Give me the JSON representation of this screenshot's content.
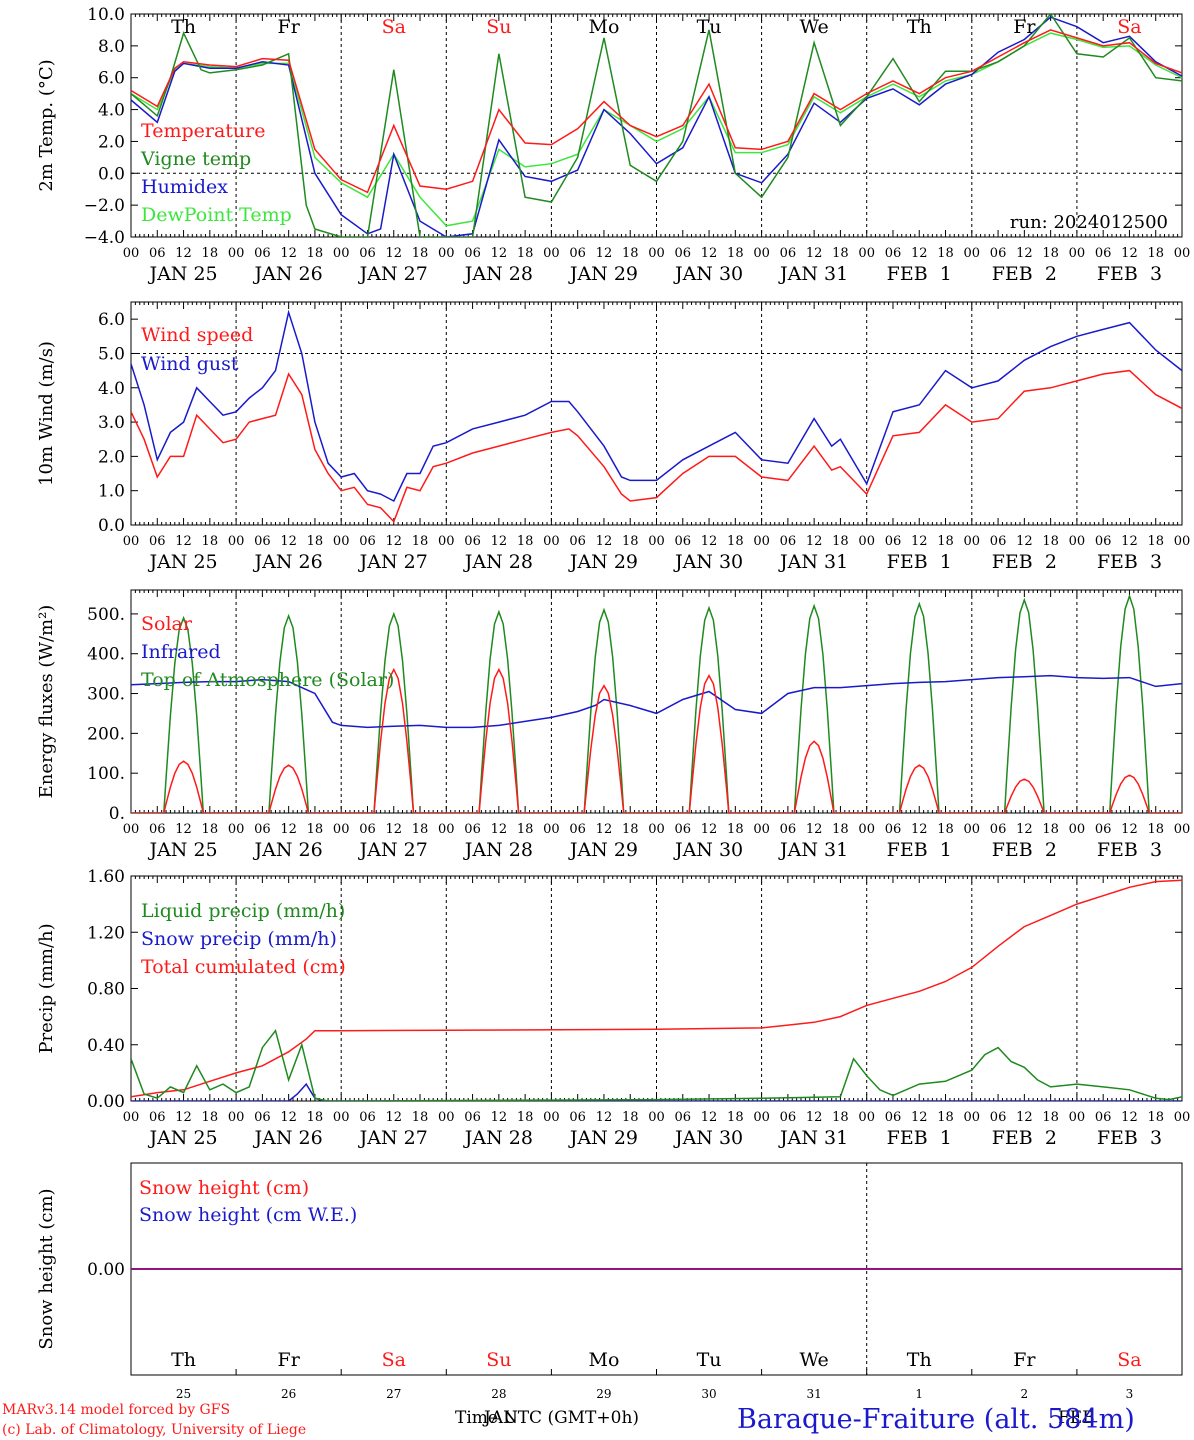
{
  "colors": {
    "red": "#ff1a1a",
    "green": "#1f8a1f",
    "blue": "#1a1acc",
    "light_green": "#3ce63c",
    "purple": "#800080",
    "axis": "#000000"
  },
  "days": {
    "weekday_labels": [
      "Th",
      "Fr",
      "Sa",
      "Su",
      "Mo",
      "Tu",
      "We",
      "Th",
      "Fr",
      "Sa"
    ],
    "weekend_flags": [
      false,
      false,
      true,
      true,
      false,
      false,
      false,
      false,
      false,
      true
    ],
    "date_labels": [
      "JAN 25",
      "JAN 26",
      "JAN 27",
      "JAN 28",
      "JAN 29",
      "JAN 30",
      "JAN 31",
      "FEB  1",
      "FEB  2",
      "FEB  3"
    ],
    "day_numbers": [
      "25",
      "26",
      "27",
      "28",
      "29",
      "30",
      "31",
      "1",
      "2",
      "3"
    ],
    "hour_labels": [
      "00",
      "06",
      "12",
      "18"
    ],
    "end_hour_label": "00"
  },
  "footer": {
    "model_line": "MARv3.14 model forced by GFS",
    "lab_line": "(c) Lab. of Climatology, University of Liege",
    "xlabel": "Time UTC (GMT+0h)",
    "overlay_month": "JAN",
    "overlay_month2": "FEB",
    "station": "Baraque-Fraiture (alt. 584m)"
  },
  "chart_data": [
    {
      "type": "line",
      "ylabel": "2m Temp. (°C)",
      "ylim": [
        -4,
        10
      ],
      "yticks": [
        -4,
        -2,
        0,
        2,
        4,
        6,
        8,
        10
      ],
      "ytick_labels": [
        "−4.0",
        "−2.0",
        "0.0",
        "2.0",
        "4.0",
        "6.0",
        "8.0",
        "10.0"
      ],
      "dashed_y": 0,
      "annotation": "run: 2024012500",
      "x_unit": "hours since 2024-01-25 00 UTC",
      "series": [
        {
          "name": "Temperature",
          "color": "red",
          "x": [
            0,
            6,
            10,
            12,
            18,
            24,
            30,
            36,
            42,
            48,
            54,
            60,
            66,
            72,
            78,
            84,
            90,
            96,
            102,
            108,
            114,
            120,
            126,
            132,
            138,
            144,
            150,
            156,
            162,
            168,
            174,
            180,
            186,
            192,
            198,
            204,
            210,
            216,
            222,
            228,
            234,
            240
          ],
          "y": [
            5.2,
            4.2,
            6.6,
            7.0,
            6.8,
            6.7,
            7.2,
            7.1,
            1.5,
            -0.4,
            -1.2,
            3.0,
            -0.8,
            -1.0,
            -0.5,
            4.0,
            1.9,
            1.8,
            2.8,
            4.5,
            3.0,
            2.3,
            3.0,
            5.6,
            1.6,
            1.5,
            2.0,
            5.0,
            4.0,
            5.0,
            5.8,
            5.0,
            6.0,
            6.4,
            7.3,
            8.2,
            9.0,
            8.5,
            8.0,
            8.2,
            6.9,
            6.3
          ]
        },
        {
          "name": "Vigne temp",
          "color": "green",
          "x": [
            0,
            6,
            9,
            12,
            16,
            18,
            24,
            30,
            36,
            40,
            42,
            48,
            54,
            60,
            66,
            72,
            78,
            84,
            90,
            96,
            102,
            108,
            114,
            120,
            126,
            132,
            138,
            144,
            150,
            156,
            162,
            168,
            174,
            180,
            186,
            192,
            198,
            204,
            210,
            216,
            222,
            228,
            234,
            240
          ],
          "y": [
            5.0,
            3.6,
            6.0,
            8.8,
            6.5,
            6.3,
            6.5,
            6.8,
            7.5,
            -2.0,
            -3.5,
            -4.0,
            -4.0,
            6.5,
            -4.0,
            -4.0,
            -4.0,
            7.5,
            -1.5,
            -1.8,
            1.0,
            8.5,
            0.5,
            -0.5,
            2.0,
            9.0,
            0.0,
            -1.5,
            1.0,
            8.2,
            3.0,
            4.8,
            7.2,
            4.5,
            6.4,
            6.4,
            7.0,
            8.0,
            10.0,
            7.5,
            7.3,
            8.5,
            6.0,
            5.8
          ]
        },
        {
          "name": "Humidex",
          "color": "blue",
          "x": [
            0,
            6,
            10,
            12,
            18,
            24,
            30,
            36,
            42,
            48,
            54,
            57,
            60,
            66,
            72,
            78,
            84,
            90,
            96,
            102,
            108,
            114,
            120,
            126,
            132,
            138,
            144,
            150,
            156,
            162,
            168,
            174,
            180,
            186,
            192,
            198,
            204,
            210,
            216,
            222,
            228,
            234,
            240
          ],
          "y": [
            4.6,
            3.2,
            6.4,
            6.9,
            6.6,
            6.6,
            7.0,
            6.8,
            0.0,
            -2.6,
            -3.8,
            -3.5,
            1.2,
            -3.0,
            -4.0,
            -3.8,
            2.1,
            -0.2,
            -0.5,
            0.2,
            4.0,
            2.5,
            0.6,
            1.6,
            4.8,
            0.0,
            -0.6,
            1.2,
            4.4,
            3.2,
            4.7,
            5.3,
            4.3,
            5.6,
            6.2,
            7.6,
            8.4,
            9.8,
            9.2,
            8.2,
            8.6,
            7.0,
            6.1
          ]
        },
        {
          "name": "DewPoint Temp",
          "color": "light_green",
          "x": [
            0,
            6,
            10,
            12,
            18,
            24,
            30,
            36,
            42,
            48,
            54,
            60,
            66,
            72,
            78,
            84,
            90,
            96,
            102,
            108,
            114,
            120,
            126,
            132,
            138,
            144,
            150,
            156,
            162,
            168,
            174,
            180,
            186,
            192,
            198,
            204,
            210,
            216,
            222,
            228,
            234,
            240
          ],
          "y": [
            5.0,
            4.0,
            6.5,
            6.9,
            6.7,
            6.6,
            6.9,
            6.9,
            1.0,
            -0.6,
            -1.5,
            1.2,
            -1.5,
            -3.3,
            -3.0,
            1.5,
            0.4,
            0.6,
            1.2,
            4.0,
            3.0,
            2.0,
            2.8,
            4.8,
            1.3,
            1.3,
            1.8,
            4.8,
            3.8,
            4.8,
            5.6,
            4.8,
            5.8,
            6.2,
            7.0,
            8.0,
            8.8,
            8.4,
            7.9,
            8.0,
            6.8,
            6.0
          ]
        }
      ]
    },
    {
      "type": "line",
      "ylabel": "10m Wind (m/s)",
      "ylim": [
        0,
        6.5
      ],
      "yticks": [
        0,
        1,
        2,
        3,
        4,
        5,
        6
      ],
      "ytick_labels": [
        "0.0",
        "1.0",
        "2.0",
        "3.0",
        "4.0",
        "5.0",
        "6.0"
      ],
      "dashed_y": 5,
      "series": [
        {
          "name": "Wind speed",
          "color": "red",
          "x": [
            0,
            3,
            6,
            9,
            12,
            15,
            18,
            21,
            24,
            27,
            30,
            33,
            36,
            39,
            42,
            45,
            48,
            51,
            54,
            57,
            60,
            63,
            66,
            69,
            72,
            78,
            84,
            90,
            96,
            100,
            102,
            108,
            112,
            114,
            120,
            126,
            132,
            138,
            144,
            150,
            156,
            160,
            162,
            168,
            174,
            180,
            186,
            192,
            198,
            204,
            210,
            216,
            222,
            228,
            234,
            240
          ],
          "y": [
            3.3,
            2.5,
            1.4,
            2.0,
            2.0,
            3.2,
            2.8,
            2.4,
            2.5,
            3.0,
            3.1,
            3.2,
            4.4,
            3.8,
            2.2,
            1.5,
            1.0,
            1.1,
            0.6,
            0.5,
            0.1,
            1.1,
            1.0,
            1.7,
            1.8,
            2.1,
            2.3,
            2.5,
            2.7,
            2.8,
            2.6,
            1.7,
            0.9,
            0.7,
            0.8,
            1.5,
            2.0,
            2.0,
            1.4,
            1.3,
            2.3,
            1.6,
            1.7,
            0.9,
            2.6,
            2.7,
            3.5,
            3.0,
            3.1,
            3.9,
            4.0,
            4.2,
            4.4,
            4.5,
            3.8,
            3.4
          ]
        },
        {
          "name": "Wind gust",
          "color": "blue",
          "x": [
            0,
            3,
            6,
            9,
            12,
            15,
            18,
            21,
            24,
            27,
            30,
            33,
            36,
            39,
            42,
            45,
            48,
            51,
            54,
            57,
            60,
            63,
            66,
            69,
            72,
            78,
            84,
            90,
            96,
            100,
            102,
            108,
            112,
            114,
            120,
            126,
            132,
            138,
            144,
            150,
            156,
            160,
            162,
            168,
            174,
            180,
            186,
            192,
            198,
            204,
            210,
            216,
            222,
            228,
            234,
            240
          ],
          "y": [
            4.7,
            3.5,
            1.9,
            2.7,
            3.0,
            4.0,
            3.6,
            3.2,
            3.3,
            3.7,
            4.0,
            4.5,
            6.2,
            5.0,
            3.0,
            1.8,
            1.4,
            1.5,
            1.0,
            0.9,
            0.7,
            1.5,
            1.5,
            2.3,
            2.4,
            2.8,
            3.0,
            3.2,
            3.6,
            3.6,
            3.3,
            2.3,
            1.4,
            1.3,
            1.3,
            1.9,
            2.3,
            2.7,
            1.9,
            1.8,
            3.1,
            2.3,
            2.5,
            1.2,
            3.3,
            3.5,
            4.5,
            4.0,
            4.2,
            4.8,
            5.2,
            5.5,
            5.7,
            5.9,
            5.1,
            4.5
          ]
        }
      ]
    },
    {
      "type": "line",
      "ylabel": "Energy fluxes (W/m²)",
      "ylim": [
        0,
        560
      ],
      "yticks": [
        0,
        100,
        200,
        300,
        400,
        500
      ],
      "ytick_labels": [
        "0.",
        "100.",
        "200.",
        "300.",
        "400.",
        "500."
      ],
      "series": [
        {
          "name": "Solar",
          "color": "red",
          "diurnal": true,
          "peaks": [
            130,
            120,
            360,
            360,
            320,
            345,
            180,
            120,
            85,
            95
          ]
        },
        {
          "name": "Infrared",
          "color": "blue",
          "x": [
            0,
            6,
            12,
            18,
            24,
            30,
            36,
            40,
            42,
            46,
            48,
            54,
            60,
            66,
            72,
            78,
            84,
            90,
            96,
            102,
            106,
            108,
            114,
            120,
            126,
            132,
            138,
            144,
            150,
            156,
            162,
            168,
            174,
            180,
            186,
            192,
            198,
            204,
            210,
            216,
            222,
            228,
            234,
            240
          ],
          "y": [
            322,
            325,
            328,
            330,
            330,
            335,
            330,
            310,
            300,
            228,
            220,
            215,
            218,
            220,
            215,
            215,
            220,
            230,
            240,
            255,
            270,
            285,
            270,
            250,
            285,
            305,
            260,
            250,
            300,
            315,
            315,
            320,
            325,
            328,
            330,
            335,
            340,
            342,
            345,
            340,
            338,
            340,
            318,
            325
          ]
        },
        {
          "name": "Top of Atmosphere (Solar)",
          "color": "green",
          "diurnal": true,
          "peaks": [
            490,
            495,
            500,
            505,
            510,
            515,
            520,
            525,
            535,
            545
          ]
        }
      ]
    },
    {
      "type": "line",
      "ylabel": "Precip (mm/h)",
      "ylim": [
        0,
        1.6
      ],
      "yticks": [
        0,
        0.4,
        0.8,
        1.2,
        1.6
      ],
      "ytick_labels": [
        "0.00",
        "0.40",
        "0.80",
        "1.20",
        "1.60"
      ],
      "series": [
        {
          "name": "Liquid precip (mm/h)",
          "color": "green",
          "x": [
            0,
            3,
            6,
            9,
            12,
            15,
            18,
            21,
            24,
            27,
            30,
            33,
            36,
            39,
            42,
            45,
            48,
            120,
            144,
            162,
            165,
            168,
            171,
            174,
            180,
            186,
            192,
            195,
            198,
            201,
            204,
            207,
            210,
            216,
            222,
            228,
            234,
            237,
            240
          ],
          "y": [
            0.3,
            0.05,
            0.02,
            0.1,
            0.06,
            0.25,
            0.08,
            0.12,
            0.06,
            0.1,
            0.38,
            0.5,
            0.15,
            0.4,
            0.02,
            0,
            0,
            0.01,
            0.02,
            0.03,
            0.3,
            0.18,
            0.08,
            0.04,
            0.12,
            0.14,
            0.22,
            0.33,
            0.38,
            0.28,
            0.24,
            0.15,
            0.1,
            0.12,
            0.1,
            0.08,
            0.02,
            0.01,
            0.03
          ]
        },
        {
          "name": "Snow precip (mm/h)",
          "color": "blue",
          "x": [
            0,
            36,
            38,
            40,
            42,
            44,
            240
          ],
          "y": [
            0,
            0,
            0.05,
            0.12,
            0.02,
            0,
            0
          ]
        },
        {
          "name": "Total cumulated (cm)",
          "color": "red",
          "x": [
            0,
            6,
            12,
            18,
            24,
            30,
            36,
            40,
            42,
            48,
            120,
            144,
            150,
            156,
            162,
            168,
            174,
            180,
            186,
            192,
            198,
            204,
            210,
            216,
            222,
            228,
            234,
            240
          ],
          "y": [
            0.03,
            0.06,
            0.08,
            0.14,
            0.2,
            0.25,
            0.35,
            0.44,
            0.5,
            0.5,
            0.51,
            0.52,
            0.54,
            0.56,
            0.6,
            0.68,
            0.73,
            0.78,
            0.85,
            0.95,
            1.1,
            1.24,
            1.32,
            1.4,
            1.46,
            1.52,
            1.56,
            1.57
          ]
        }
      ]
    },
    {
      "type": "line",
      "ylabel": "Snow height (cm)",
      "ylim": [
        -1,
        1
      ],
      "yticks": [
        0
      ],
      "ytick_labels": [
        "0.00"
      ],
      "series": [
        {
          "name": "Snow height (cm)",
          "color": "red",
          "x": [
            0,
            240
          ],
          "y": [
            0,
            0
          ]
        },
        {
          "name": "Snow height (cm W.E.)",
          "color": "blue",
          "x": [
            0,
            240
          ],
          "y": [
            0,
            0
          ]
        }
      ]
    }
  ]
}
